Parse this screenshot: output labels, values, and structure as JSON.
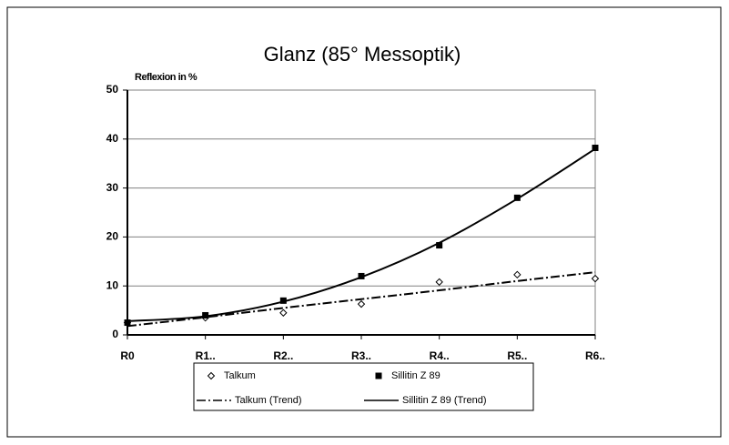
{
  "chart_data": {
    "type": "line",
    "title": "Glanz (85° Messoptik)",
    "y_label": "Reflexion in %",
    "categories": [
      "R0",
      "R1..",
      "R2..",
      "R3..",
      "R4..",
      "R5..",
      "R6.."
    ],
    "series": [
      {
        "name": "Talkum",
        "color": "#000000",
        "marker": "diamond",
        "line": "none",
        "values": [
          2.5,
          3.5,
          4.5,
          6.3,
          10.8,
          12.3,
          11.5
        ]
      },
      {
        "name": "Sillitin Z 89",
        "color": "#000000",
        "marker": "square",
        "line": "none",
        "values": [
          2.5,
          4,
          7,
          12,
          18.3,
          28,
          38.2
        ]
      },
      {
        "name": "Talkum (Trend)",
        "color": "#000000",
        "marker": "none",
        "line": "dash-dot",
        "values": [
          1.8,
          3.6,
          5.5,
          7.3,
          9.1,
          11,
          12.8
        ]
      },
      {
        "name": "Sillitin Z 89 (Trend)",
        "color": "#000000",
        "marker": "none",
        "line": "solid",
        "values": [
          2.8,
          3.8,
          6.8,
          11.8,
          18.8,
          27.8,
          38
        ]
      }
    ],
    "ylim": [
      0,
      50
    ],
    "yticks": [
      0,
      10,
      20,
      30,
      40,
      50
    ],
    "grid": true,
    "legend": "bottom"
  }
}
